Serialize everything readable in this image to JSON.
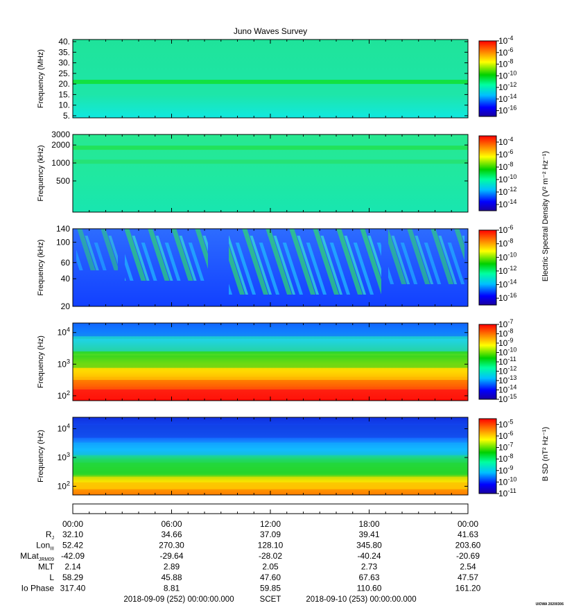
{
  "chart_data": {
    "type": "heatmap",
    "title": "Juno Waves Survey",
    "panels": [
      {
        "ylabel": "Frequency (MHz)",
        "yscale": "linear",
        "ylim": [
          4,
          41
        ],
        "yticks": [
          5,
          10,
          15,
          20,
          25,
          30,
          35,
          40
        ],
        "ytick_labels": [
          "5.",
          "10.",
          "15.",
          "20.",
          "25.",
          "30.",
          "35.",
          "40."
        ],
        "colorbar_ticks": [
          "-4",
          "-6",
          "-8",
          "-10",
          "-12",
          "-14",
          "-16"
        ],
        "colorbar_range": [
          -17,
          -4
        ],
        "bands": [
          {
            "y": 21,
            "color": "#10e030"
          }
        ]
      },
      {
        "ylabel": "Frequency (kHz)",
        "yscale": "log",
        "ylim": [
          150,
          3000
        ],
        "yticks": [
          500,
          1000,
          2000,
          3000
        ],
        "ytick_labels": [
          "500",
          "1000",
          "2000",
          "3000"
        ],
        "colorbar_ticks": [
          "-4",
          "-6",
          "-8",
          "-10",
          "-12",
          "-14"
        ],
        "colorbar_range": [
          -15,
          -3
        ],
        "bands": [
          {
            "y": 1800,
            "color": "#22e050"
          },
          {
            "y": 1050,
            "color": "#26e070"
          }
        ]
      },
      {
        "ylabel": "Frequency (kHz)",
        "yscale": "log",
        "ylim": [
          20,
          140
        ],
        "yticks": [
          20,
          40,
          60,
          100,
          140
        ],
        "ytick_labels": [
          "20",
          "40",
          "60",
          "100",
          "140"
        ],
        "colorbar_ticks": [
          "-6",
          "-8",
          "-10",
          "-12",
          "-14",
          "-16"
        ],
        "colorbar_range": [
          -17,
          -6
        ]
      },
      {
        "ylabel": "Frequency (Hz)",
        "yscale": "log",
        "ylim": [
          70,
          20000
        ],
        "yticks": [
          100,
          1000,
          10000
        ],
        "ytick_labels": [
          "10",
          "10",
          "10"
        ],
        "ytick_exponents": [
          "2",
          "3",
          "4"
        ],
        "colorbar_ticks": [
          "-7",
          "-8",
          "-9",
          "-10",
          "-11",
          "-12",
          "-13",
          "-14",
          "-15"
        ],
        "colorbar_range": [
          -15,
          -7
        ],
        "bands": [
          {
            "y": 120,
            "color": "#ff2010"
          },
          {
            "y": 250,
            "color": "#ff7a00"
          },
          {
            "y": 500,
            "color": "#ffe000"
          },
          {
            "y": 1200,
            "color": "#20d020"
          },
          {
            "y": 4000,
            "color": "#20d0ff"
          },
          {
            "y": 12000,
            "color": "#1060ff"
          }
        ]
      },
      {
        "ylabel": "Frequency (Hz)",
        "yscale": "log",
        "ylim": [
          50,
          25000
        ],
        "yticks": [
          100,
          1000,
          10000
        ],
        "ytick_labels": [
          "10",
          "10",
          "10"
        ],
        "ytick_exponents": [
          "2",
          "3",
          "4"
        ],
        "colorbar_ticks": [
          "-5",
          "-6",
          "-7",
          "-8",
          "-9",
          "-10",
          "-11"
        ],
        "colorbar_range": [
          -11,
          -4.5
        ],
        "bands": [
          {
            "y": 65,
            "color": "#ff8800"
          },
          {
            "y": 130,
            "color": "#ffe000"
          },
          {
            "y": 400,
            "color": "#20d830"
          },
          {
            "y": 2000,
            "color": "#10b0ff"
          },
          {
            "y": 8000,
            "color": "#1040e0"
          }
        ]
      }
    ],
    "colorbar_label_e": "Electric Spectral Density (V² m⁻² Hz⁻¹)",
    "colorbar_label_b": "B SD (nT² Hz⁻¹)",
    "colorbar_label_prefix": "10",
    "time_labels": [
      "00:00",
      "06:00",
      "12:00",
      "18:00",
      "00:00"
    ],
    "ephemeris": [
      {
        "label": "R",
        "sub": "J",
        "values": [
          "32.10",
          "34.66",
          "37.09",
          "39.41",
          "41.63"
        ]
      },
      {
        "label": "Lon",
        "sub": "III",
        "values": [
          "52.42",
          "270.30",
          "128.10",
          "345.80",
          "203.60"
        ]
      },
      {
        "label": "MLat",
        "sub": "JRM09",
        "values": [
          "-42.09",
          "-29.64",
          "-28.02",
          "-40.24",
          "-20.69"
        ]
      },
      {
        "label": "MLT",
        "sub": "",
        "values": [
          "2.14",
          "2.89",
          "2.05",
          "2.73",
          "2.54"
        ]
      },
      {
        "label": "L",
        "sub": "",
        "values": [
          "58.29",
          "45.88",
          "47.60",
          "67.63",
          "47.57"
        ]
      },
      {
        "label": "Io Phase",
        "sub": "",
        "values": [
          "317.40",
          "8.81",
          "59.85",
          "110.60",
          "161.20"
        ]
      }
    ],
    "footer": {
      "start": "2018-09-09 (252) 00:00:00.000",
      "scet": "SCET",
      "end": "2018-09-10 (253) 00:00:00.000"
    },
    "credit": "UIOWA 20200306"
  }
}
